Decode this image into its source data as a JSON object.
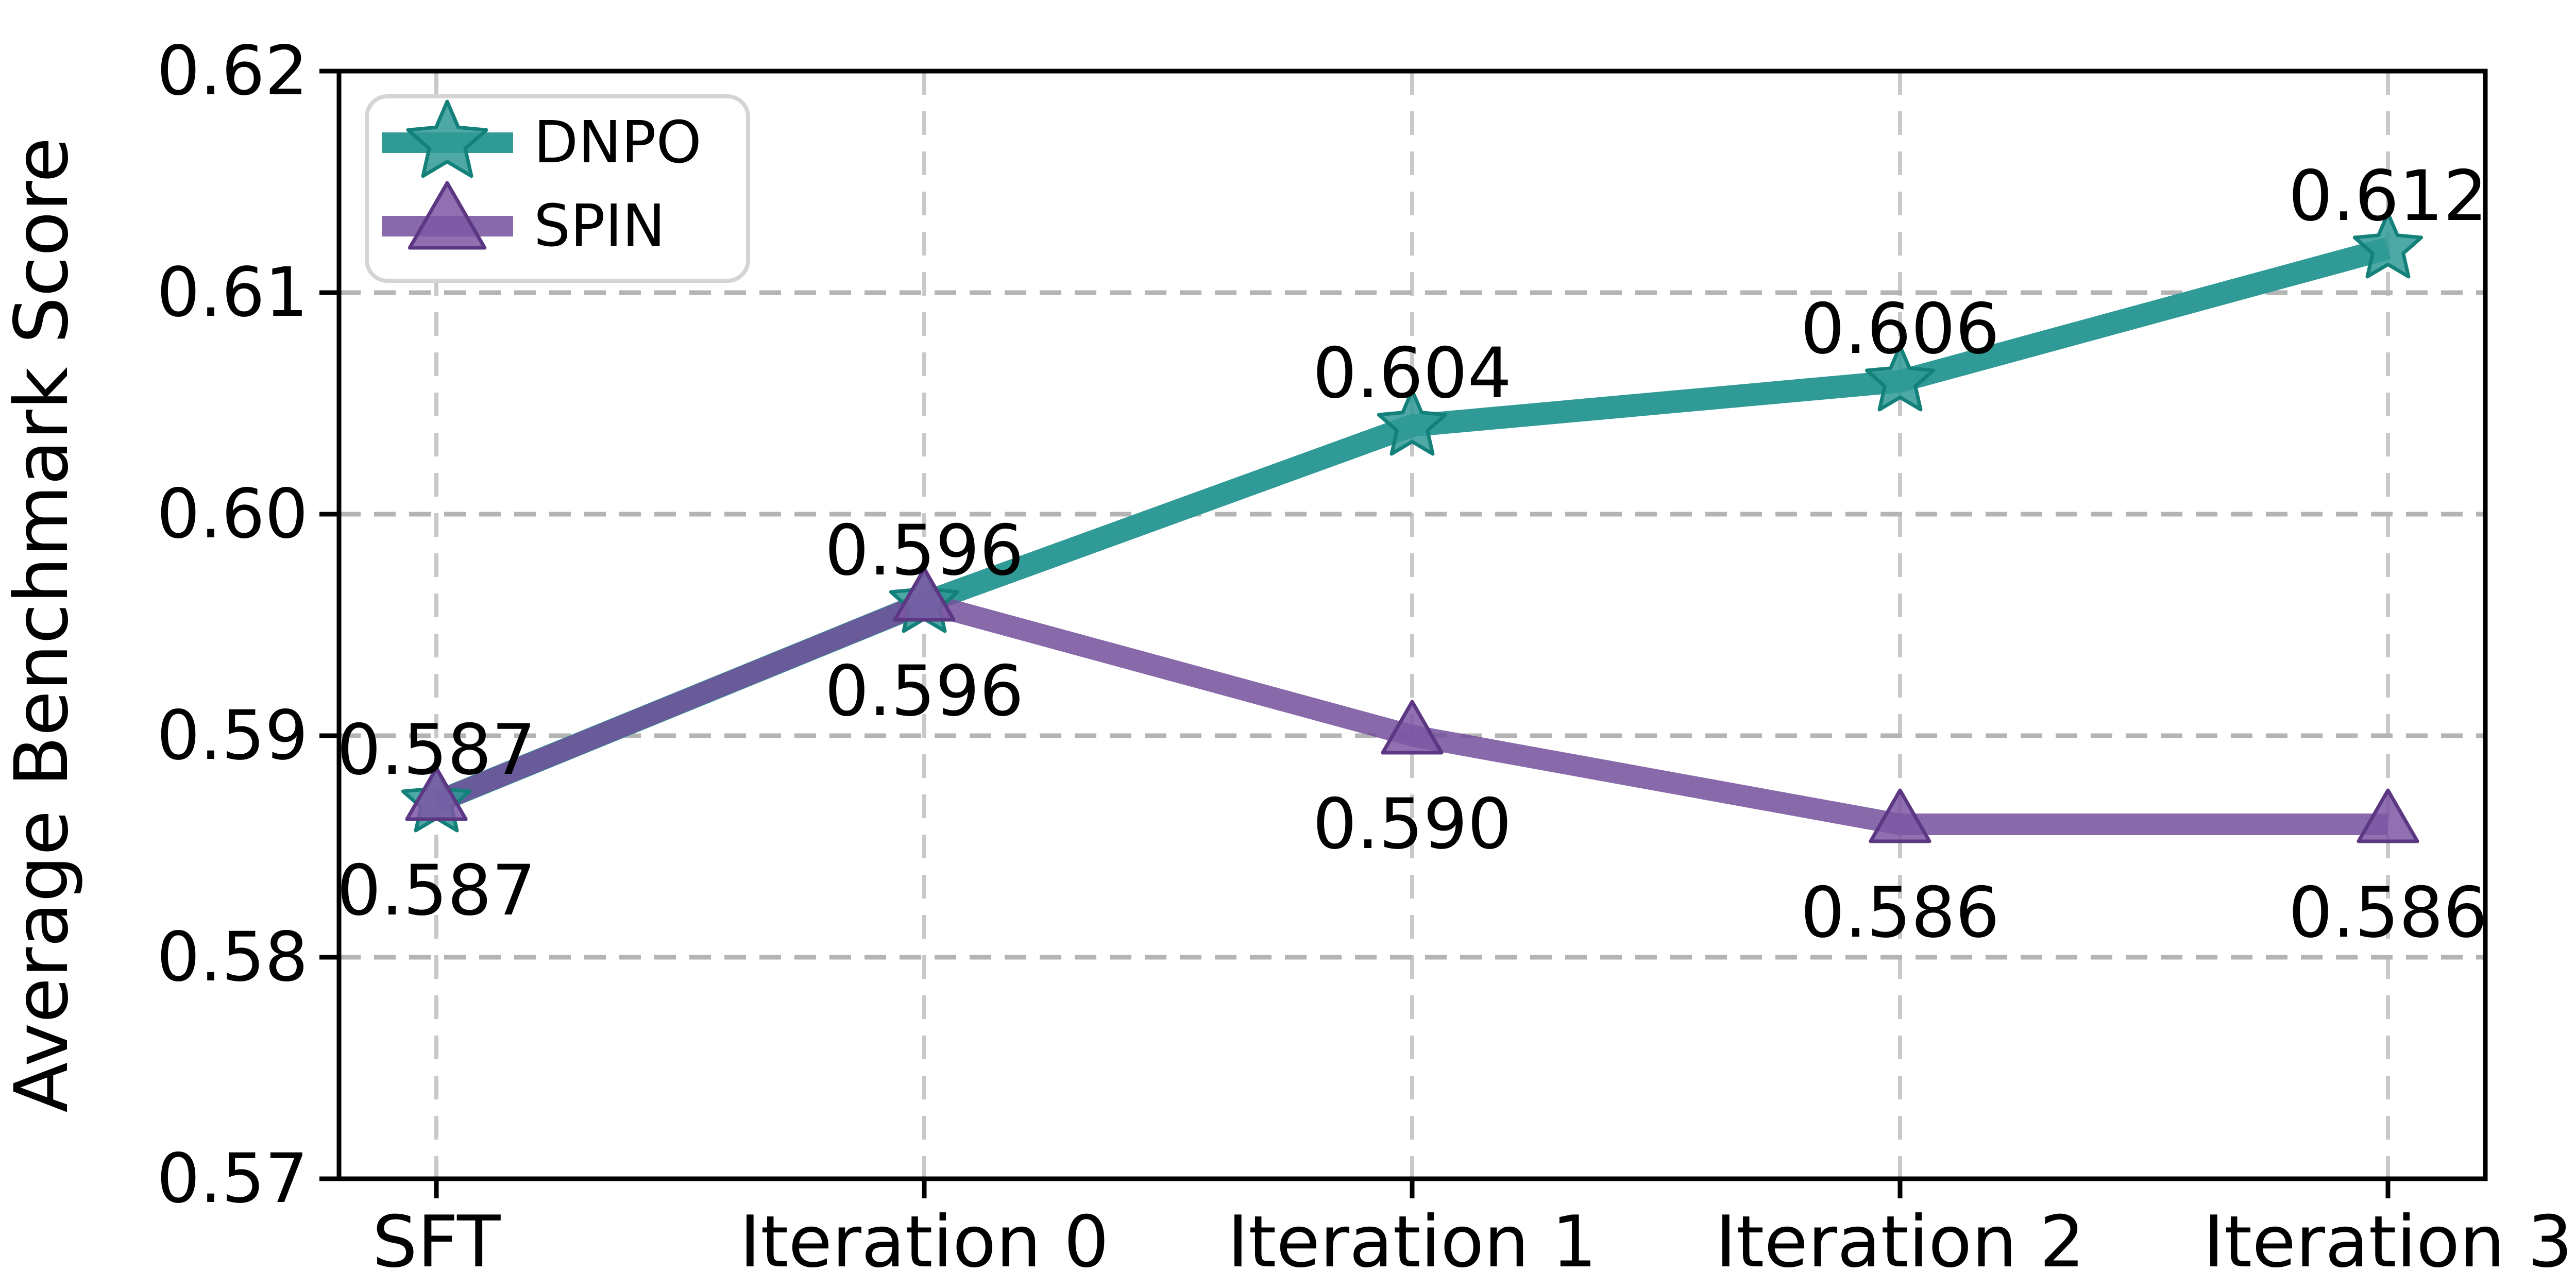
{
  "chart_data": {
    "type": "line",
    "title": "",
    "xlabel": "",
    "ylabel": "Average Benchmark Score",
    "categories": [
      "SFT",
      "Iteration 0",
      "Iteration 1",
      "Iteration 2",
      "Iteration 3"
    ],
    "ylim": [
      0.57,
      0.62
    ],
    "yticks": [
      {
        "value": 0.57,
        "label": "0.57"
      },
      {
        "value": 0.58,
        "label": "0.58"
      },
      {
        "value": 0.59,
        "label": "0.59"
      },
      {
        "value": 0.6,
        "label": "0.60"
      },
      {
        "value": 0.61,
        "label": "0.61"
      },
      {
        "value": 0.62,
        "label": "0.62"
      }
    ],
    "grid": "dashed",
    "legend_position": "upper-left",
    "series": [
      {
        "name": "DNPO",
        "marker": "star",
        "line_color": "#2F9A96",
        "line_opacity": 1.0,
        "marker_fill": "#2F9A96",
        "marker_edge": "#14807A",
        "values": [
          0.587,
          0.596,
          0.604,
          0.606,
          0.612
        ],
        "point_labels": [
          "0.587",
          "0.596",
          "0.604",
          "0.606",
          "0.612"
        ],
        "label_placement": "above"
      },
      {
        "name": "SPIN",
        "marker": "triangle-up",
        "line_color": "#73509B",
        "line_opacity": 0.85,
        "marker_fill": "#7E57A5",
        "marker_edge": "#5C3884",
        "values": [
          0.587,
          0.596,
          0.59,
          0.586,
          0.586
        ],
        "point_labels": [
          "0.587",
          "0.596",
          "0.590",
          "0.586",
          "0.586"
        ],
        "label_placement": "below"
      }
    ],
    "colors": {
      "grid_horizontal": "#b4b4b4",
      "grid_vertical": "#c9c9c9",
      "spine": "#000000",
      "legend_border": "#d4d4d4",
      "text": "#000000",
      "background": "#ffffff"
    }
  }
}
